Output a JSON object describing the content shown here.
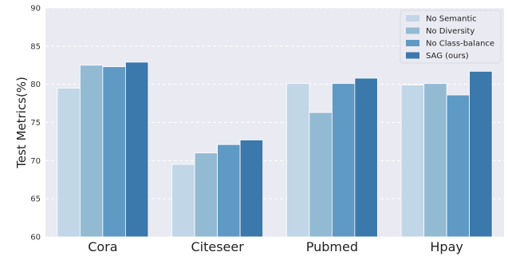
{
  "chart_data": {
    "type": "bar",
    "categories": [
      "Cora",
      "Citeseer",
      "Pubmed",
      "Hpay"
    ],
    "series": [
      {
        "name": "No Semantic",
        "color": "#c1d6e7",
        "values": [
          79.5,
          69.5,
          80.1,
          79.9
        ]
      },
      {
        "name": "No Diversity",
        "color": "#93bad3",
        "values": [
          82.5,
          71.0,
          76.3,
          80.1
        ]
      },
      {
        "name": "No Class-balance",
        "color": "#5f9ac5",
        "values": [
          82.3,
          72.1,
          80.1,
          78.6
        ]
      },
      {
        "name": "SAG (ours)",
        "color": "#3b78ac",
        "values": [
          82.9,
          72.7,
          80.8,
          81.7
        ]
      }
    ],
    "title": "",
    "xlabel": "",
    "ylabel": "Test Metrics(%)",
    "ylim": [
      60,
      90
    ],
    "yticks": [
      60,
      65,
      70,
      75,
      80,
      85,
      90
    ],
    "grid": true,
    "legend_position": "top-right",
    "background_color": "#eaeaf2",
    "grid_color": "#ffffff"
  }
}
